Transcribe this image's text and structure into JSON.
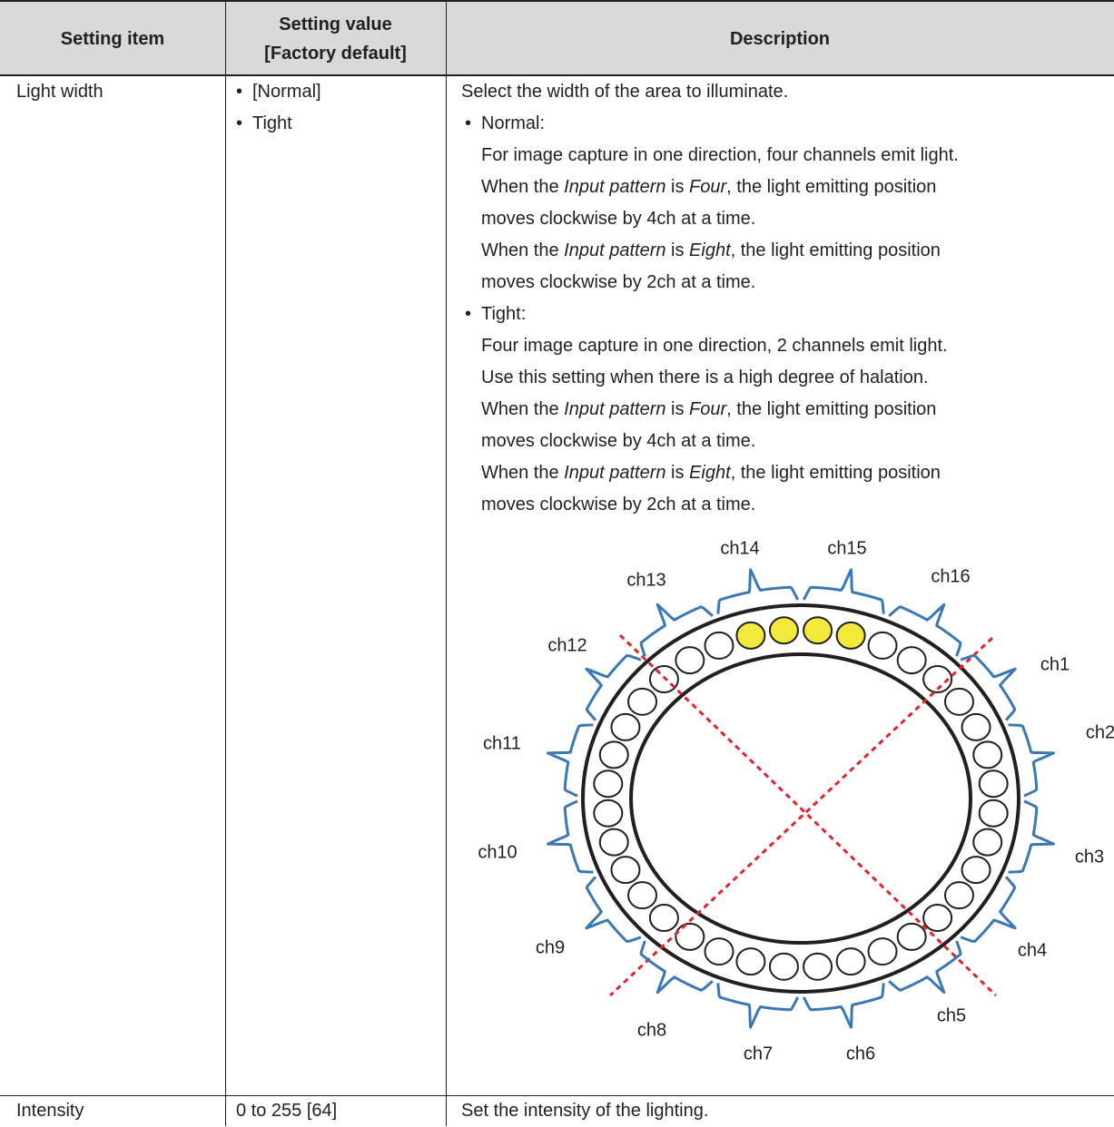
{
  "table": {
    "header": [
      "Setting item",
      [
        "Setting value",
        "[Factory default]"
      ],
      "Description"
    ],
    "rows": [
      {
        "item": "Light width",
        "values": [
          "[Normal]",
          "Tight"
        ],
        "description": {
          "intro": "Select the width of the area to illuminate.",
          "items": [
            {
              "label": "Normal:",
              "lines": [
                [
                  "For image capture in one direction, four channels emit light."
                ],
                [
                  "When the ",
                  "Input pattern",
                  " is ",
                  "Four",
                  ", the light emitting position"
                ],
                [
                  "moves clockwise by 4ch at a time."
                ],
                [
                  "When the ",
                  "Input pattern",
                  " is ",
                  "Eight",
                  ", the light emitting position"
                ],
                [
                  "moves clockwise by 2ch at a time."
                ]
              ]
            },
            {
              "label": "Tight:",
              "lines": [
                [
                  "Four image capture in one direction, 2 channels emit light."
                ],
                [
                  "Use this setting when there is a high degree of halation."
                ],
                [
                  "When the ",
                  "Input pattern",
                  " is ",
                  "Four",
                  ", the light emitting position"
                ],
                [
                  "moves clockwise by 4ch at a time."
                ],
                [
                  "When the ",
                  "Input pattern",
                  " is ",
                  "Eight",
                  ", the light emitting position"
                ],
                [
                  "moves clockwise by 2ch at a time."
                ]
              ]
            }
          ]
        },
        "figure": {
          "channels": [
            "ch1",
            "ch2",
            "ch3",
            "ch4",
            "ch5",
            "ch6",
            "ch7",
            "ch8",
            "ch9",
            "ch10",
            "ch11",
            "ch12",
            "ch13",
            "ch14",
            "ch15",
            "ch16"
          ]
        }
      },
      {
        "item": "Intensity",
        "value": "0 to 255 [64]",
        "description": "Set the intensity of the lighting."
      }
    ]
  }
}
